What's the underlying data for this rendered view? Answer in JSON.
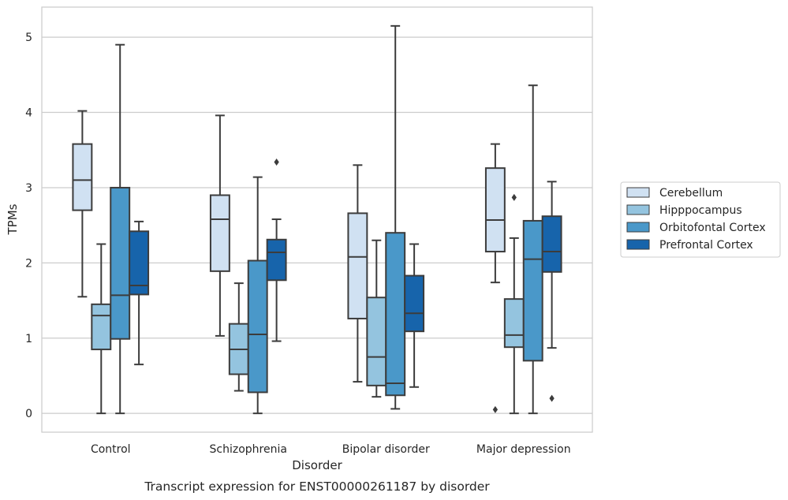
{
  "chart_data": {
    "type": "box",
    "title": "",
    "caption": "Transcript expression for ENST00000261187 by disorder",
    "xlabel": "Disorder",
    "ylabel": "TPMs",
    "ylim": [
      -0.25,
      5.4
    ],
    "yticks": [
      "0",
      "1",
      "2",
      "3",
      "4",
      "5"
    ],
    "grid": "horizontal",
    "legend_position": "right",
    "categories": [
      "Control",
      "Schizophrenia",
      "Bipolar disorder",
      "Major depression"
    ],
    "series": [
      {
        "name": "Cerebellum",
        "color": "#d0e1f2",
        "boxes": [
          {
            "min": 1.55,
            "q1": 2.7,
            "median": 3.1,
            "q3": 3.58,
            "max": 4.02,
            "outliers": []
          },
          {
            "min": 1.03,
            "q1": 1.89,
            "median": 2.58,
            "q3": 2.9,
            "max": 3.96,
            "outliers": []
          },
          {
            "min": 0.42,
            "q1": 1.26,
            "median": 2.08,
            "q3": 2.66,
            "max": 3.3,
            "outliers": []
          },
          {
            "min": 1.74,
            "q1": 2.15,
            "median": 2.57,
            "q3": 3.26,
            "max": 3.58,
            "outliers": [
              0.05
            ]
          }
        ]
      },
      {
        "name": "Hipppocampus",
        "color": "#94c4df",
        "boxes": [
          {
            "min": 0.0,
            "q1": 0.85,
            "median": 1.3,
            "q3": 1.45,
            "max": 2.25,
            "outliers": []
          },
          {
            "min": 0.3,
            "q1": 0.52,
            "median": 0.85,
            "q3": 1.19,
            "max": 1.73,
            "outliers": []
          },
          {
            "min": 0.22,
            "q1": 0.37,
            "median": 0.75,
            "q3": 1.54,
            "max": 2.3,
            "outliers": []
          },
          {
            "min": 0.0,
            "q1": 0.88,
            "median": 1.04,
            "q3": 1.52,
            "max": 2.33,
            "outliers": [
              2.87
            ]
          }
        ]
      },
      {
        "name": "Orbitofontal Cortex",
        "color": "#4a98c9",
        "boxes": [
          {
            "min": 0.0,
            "q1": 0.99,
            "median": 1.57,
            "q3": 3.0,
            "max": 4.9,
            "outliers": []
          },
          {
            "min": 0.0,
            "q1": 0.28,
            "median": 1.05,
            "q3": 2.03,
            "max": 3.14,
            "outliers": []
          },
          {
            "min": 0.06,
            "q1": 0.24,
            "median": 0.4,
            "q3": 2.4,
            "max": 5.15,
            "outliers": []
          },
          {
            "min": 0.0,
            "q1": 0.7,
            "median": 2.05,
            "q3": 2.56,
            "max": 4.36,
            "outliers": []
          }
        ]
      },
      {
        "name": "Prefrontal Cortex",
        "color": "#1764ab",
        "boxes": [
          {
            "min": 0.65,
            "q1": 1.58,
            "median": 1.7,
            "q3": 2.42,
            "max": 2.55,
            "outliers": []
          },
          {
            "min": 0.96,
            "q1": 1.77,
            "median": 2.14,
            "q3": 2.31,
            "max": 2.58,
            "outliers": [
              3.34
            ]
          },
          {
            "min": 0.35,
            "q1": 1.09,
            "median": 1.33,
            "q3": 1.83,
            "max": 2.25,
            "outliers": []
          },
          {
            "min": 0.87,
            "q1": 1.88,
            "median": 2.15,
            "q3": 2.62,
            "max": 3.08,
            "outliers": [
              0.2
            ]
          }
        ]
      }
    ]
  }
}
